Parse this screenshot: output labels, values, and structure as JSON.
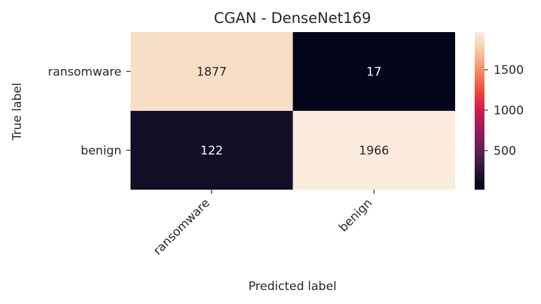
{
  "chart_data": {
    "type": "heatmap",
    "title": "CGAN - DenseNet169",
    "xlabel": "Predicted label",
    "ylabel": "True label",
    "x_categories": [
      "ransomware",
      "benign"
    ],
    "y_categories": [
      "ransomware",
      "benign"
    ],
    "values": [
      [
        1877,
        17
      ],
      [
        122,
        1966
      ]
    ],
    "colorbar": {
      "ticks": [
        500,
        1000,
        1500
      ],
      "range": [
        17,
        1966
      ],
      "colormap": "rocket"
    },
    "text_colors": {
      "light": "#ffffff",
      "dark": "#262626"
    }
  }
}
